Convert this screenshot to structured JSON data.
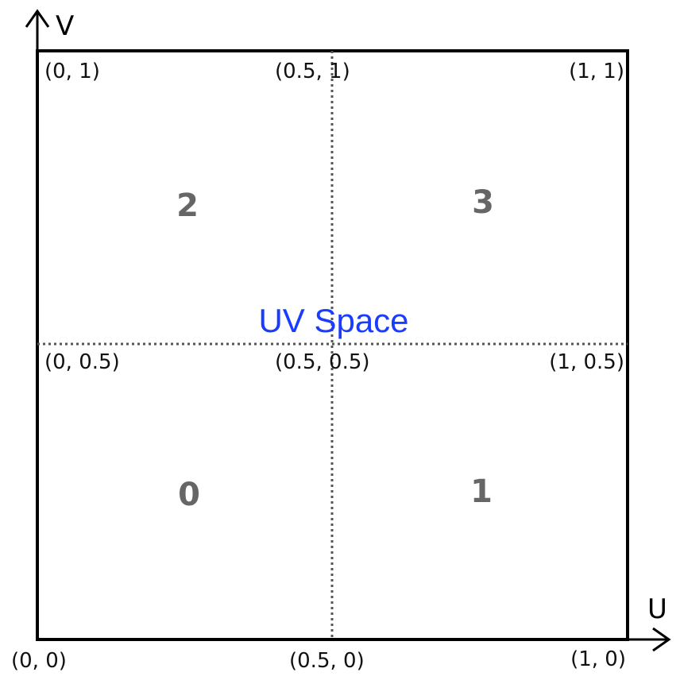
{
  "title": "UV Space",
  "axes": {
    "u_label": "U",
    "v_label": "V"
  },
  "corners": {
    "bottom_left": "(0, 0)",
    "bottom_mid": "(0.5, 0)",
    "bottom_right": "(1, 0)",
    "mid_left": "(0, 0.5)",
    "center": "(0.5, 0.5)",
    "mid_right": "(1, 0.5)",
    "top_left": "(0, 1)",
    "top_mid": "(0.5, 1)",
    "top_right": "(1, 1)"
  },
  "quadrants": {
    "q0": "0",
    "q1": "1",
    "q2": "2",
    "q3": "3"
  },
  "colors": {
    "outline": "#000000",
    "divider": "#555555",
    "coord_text": "#111111",
    "quadrant_text": "#666666",
    "title_text": "#1a3cff",
    "background": "#ffffff"
  }
}
